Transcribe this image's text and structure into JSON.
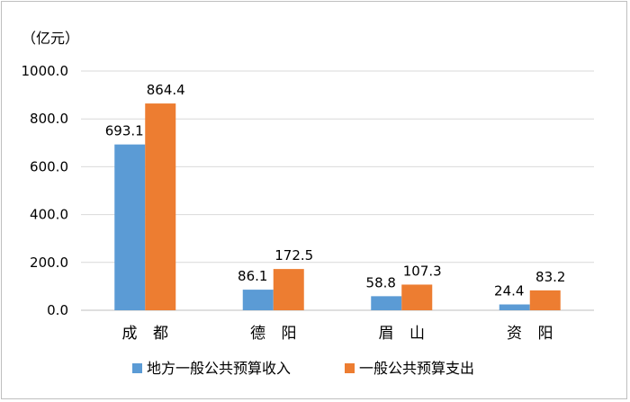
{
  "chart_data": {
    "type": "bar",
    "ylabel": "（亿元）",
    "categories": [
      "成 都",
      "德 阳",
      "眉 山",
      "资 阳"
    ],
    "yticks": [
      "0.0",
      "200.0",
      "400.0",
      "600.0",
      "800.0",
      "1000.0"
    ],
    "ylim": [
      0,
      1000
    ],
    "grid": true,
    "legend_position": "bottom",
    "series": [
      {
        "name": "地方一般公共预算收入",
        "color": "#5b9bd5",
        "values": [
          693.1,
          86.1,
          58.8,
          24.4
        ],
        "labels": [
          "693.1",
          "86.1",
          "58.8",
          "24.4"
        ]
      },
      {
        "name": "一般公共预算支出",
        "color": "#ed7d31",
        "values": [
          864.4,
          172.5,
          107.3,
          83.2
        ],
        "labels": [
          "864.4",
          "172.5",
          "107.3",
          "83.2"
        ]
      }
    ]
  }
}
